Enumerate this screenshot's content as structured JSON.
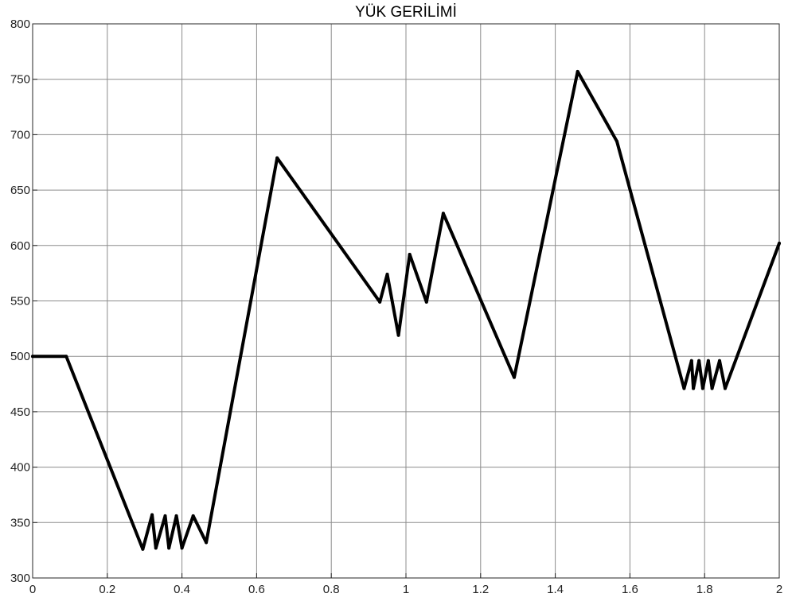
{
  "chart_data": {
    "type": "line",
    "title": "YÜK GERİLİMİ",
    "xlabel": "",
    "ylabel": "",
    "xlim": [
      0,
      2
    ],
    "ylim": [
      300,
      800
    ],
    "x_ticks": [
      0,
      0.2,
      0.4,
      0.6,
      0.8,
      1,
      1.2,
      1.4,
      1.6,
      1.8,
      2
    ],
    "x_tick_labels": [
      "0",
      "0.2",
      "0.4",
      "0.6",
      "0.8",
      "1",
      "1.2",
      "1.4",
      "1.6",
      "1.8",
      "2"
    ],
    "y_ticks": [
      300,
      350,
      400,
      450,
      500,
      550,
      600,
      650,
      700,
      750,
      800
    ],
    "y_tick_labels": [
      "300",
      "350",
      "400",
      "450",
      "500",
      "550",
      "600",
      "650",
      "700",
      "750",
      "800"
    ],
    "grid": true,
    "legend": "none",
    "series": [
      {
        "color": "#000000",
        "x": [
          0,
          0.09,
          0.295,
          0.32,
          0.33,
          0.355,
          0.365,
          0.385,
          0.4,
          0.43,
          0.465,
          0.655,
          0.93,
          0.95,
          0.98,
          1.01,
          1.055,
          1.1,
          1.29,
          1.46,
          1.565,
          1.745,
          1.765,
          1.77,
          1.785,
          1.795,
          1.81,
          1.82,
          1.84,
          1.855,
          2
        ],
        "y": [
          500,
          500,
          326,
          357,
          327,
          356,
          327,
          356,
          327,
          356,
          332,
          679,
          549,
          574,
          519,
          592,
          549,
          629,
          481,
          757,
          694,
          471,
          496,
          471,
          496,
          471,
          496,
          471,
          496,
          471,
          602
        ]
      }
    ]
  }
}
